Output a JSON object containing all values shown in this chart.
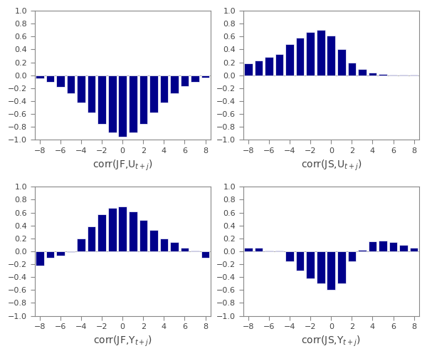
{
  "lags": [
    -8,
    -7,
    -6,
    -5,
    -4,
    -3,
    -2,
    -1,
    0,
    1,
    2,
    3,
    4,
    5,
    6,
    7,
    8
  ],
  "corr_JF_U": [
    -0.05,
    -0.1,
    -0.18,
    -0.28,
    -0.42,
    -0.58,
    -0.75,
    -0.88,
    -0.95,
    -0.88,
    -0.75,
    -0.58,
    -0.42,
    -0.28,
    -0.17,
    -0.1,
    -0.04
  ],
  "corr_JS_U": [
    0.18,
    0.23,
    0.28,
    0.33,
    0.48,
    0.58,
    0.67,
    0.7,
    0.62,
    0.4,
    0.2,
    0.1,
    0.04,
    0.02,
    0.01,
    0.01,
    0.01
  ],
  "corr_JF_Y": [
    -0.22,
    -0.1,
    -0.07,
    -0.01,
    0.2,
    0.39,
    0.57,
    0.67,
    0.7,
    0.62,
    0.48,
    0.33,
    0.2,
    0.14,
    0.05,
    0.01,
    -0.1
  ],
  "corr_JS_Y": [
    0.06,
    0.05,
    0.01,
    0.01,
    -0.15,
    -0.3,
    -0.42,
    -0.5,
    -0.6,
    -0.5,
    -0.15,
    0.02,
    0.15,
    0.17,
    0.14,
    0.1,
    0.06
  ],
  "bar_color": "#00008B",
  "xlim": [
    -8.5,
    8.5
  ],
  "ylim": [
    -1.0,
    1.0
  ],
  "yticks": [
    -1.0,
    -0.8,
    -0.6,
    -0.4,
    -0.2,
    0.0,
    0.2,
    0.4,
    0.6,
    0.8,
    1.0
  ],
  "xticks": [
    -8,
    -6,
    -4,
    -2,
    0,
    2,
    4,
    6,
    8
  ],
  "xlabel_JF_U": "corr(JF,U$_{t+j}$)",
  "xlabel_JS_U": "corr(JS,U$_{t+j}$)",
  "xlabel_JF_Y": "corr(JF,Y$_{t+j}$)",
  "xlabel_JS_Y": "corr(JS,Y$_{t+j}$)",
  "bar_width": 0.8,
  "figsize": [
    6.0,
    5.0
  ],
  "dpi": 100,
  "tick_labelsize": 8,
  "xlabel_fontsize": 10,
  "spine_color": "#888888",
  "tick_color": "#888888",
  "label_color": "#444444"
}
